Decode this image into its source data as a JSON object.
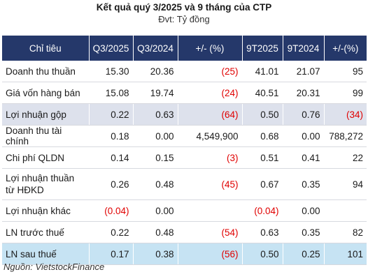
{
  "title": "Kết quả quý 3/2025 và 9 tháng của CTP",
  "subtitle": "Đvt: Tỷ đồng",
  "source": "Nguồn: VietstockFinance",
  "headers": [
    "Chỉ tiêu",
    "Q3/2025",
    "Q3/2024",
    "+/- (%)",
    "9T2025",
    "9T2024",
    "+/-(%)"
  ],
  "rows": [
    {
      "label": "Doanh thu thuần",
      "cells": [
        "15.30",
        "20.36",
        "(25)",
        "41.01",
        "21.07",
        "95"
      ]
    },
    {
      "label": "Giá vốn hàng bán",
      "cells": [
        "15.08",
        "19.74",
        "(24)",
        "40.51",
        "20.31",
        "99"
      ]
    },
    {
      "label": "Lợi nhuận gộp",
      "cells": [
        "0.22",
        "0.63",
        "(64)",
        "0.50",
        "0.76",
        "(34)"
      ]
    },
    {
      "label": "Doanh thu tài chính",
      "cells": [
        "0.18",
        "0.00",
        "4,549,900",
        "0.68",
        "0.00",
        "788,272"
      ]
    },
    {
      "label": "Chi phí QLDN",
      "cells": [
        "0.14",
        "0.15",
        "(3)",
        "0.51",
        "0.41",
        "22"
      ]
    },
    {
      "label": "Lợi nhuận thuần từ HĐKD",
      "cells": [
        "0.26",
        "0.48",
        "(45)",
        "0.67",
        "0.35",
        "94"
      ]
    },
    {
      "label": "Lợi nhuận khác",
      "cells": [
        "(0.04)",
        "0.00",
        "",
        "(0.04)",
        "0.00",
        ""
      ]
    },
    {
      "label": "LN trước thuế",
      "cells": [
        "0.22",
        "0.48",
        "(54)",
        "0.63",
        "0.35",
        "82"
      ]
    },
    {
      "label": "LN sau thuế",
      "cells": [
        "0.17",
        "0.38",
        "(56)",
        "0.50",
        "0.25",
        "101"
      ]
    }
  ]
}
